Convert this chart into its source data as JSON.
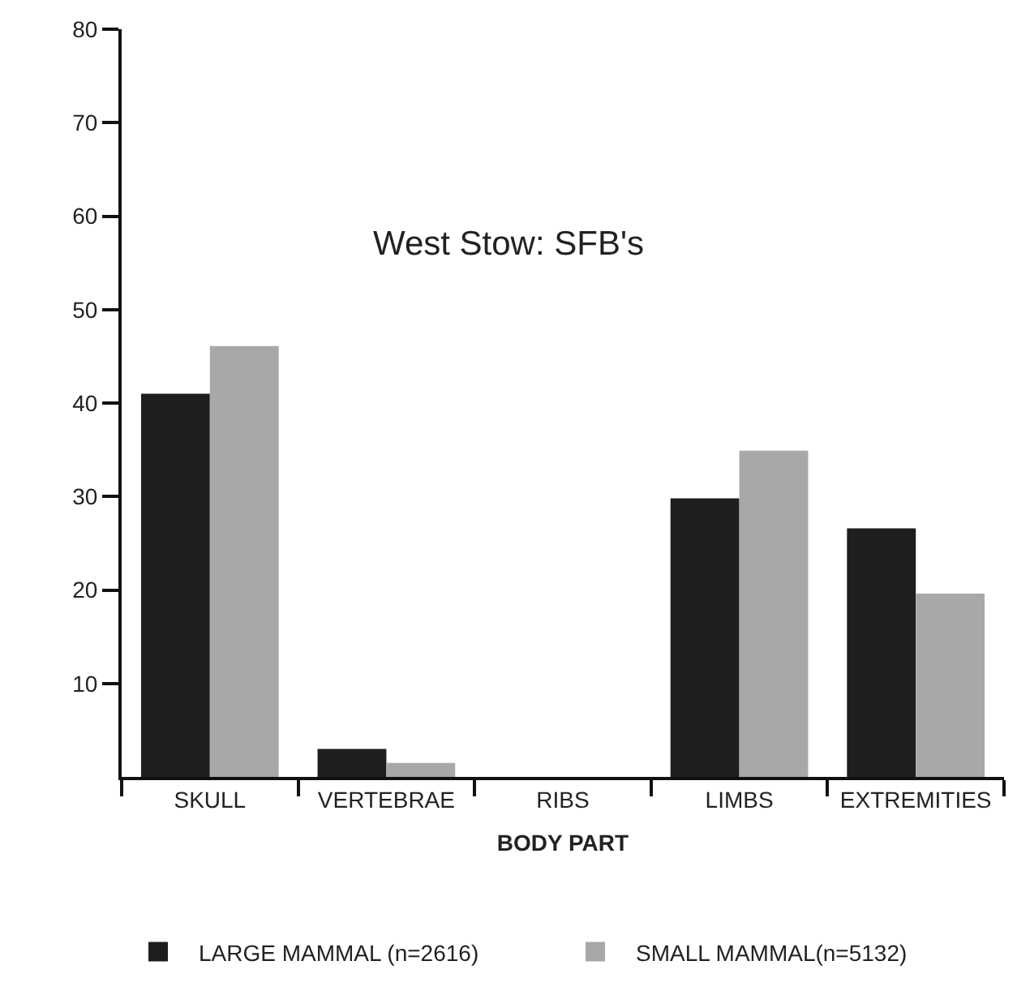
{
  "chart_data": {
    "type": "bar",
    "title": "West Stow: SFB's",
    "xlabel": "BODY PART",
    "categories": [
      "SKULL",
      "VERTEBRAE",
      "RIBS",
      "LIMBS",
      "EXTREMITIES"
    ],
    "series": [
      {
        "name": "LARGE MAMMAL (n=2616)",
        "color": "#1e1e1e",
        "values": [
          41.0,
          3.0,
          0,
          29.8,
          26.6
        ]
      },
      {
        "name": "SMALL MAMMAL(n=5132)",
        "color": "#a8a8a8",
        "values": [
          46.1,
          1.5,
          0,
          34.9,
          19.6
        ]
      }
    ],
    "ylim": [
      0,
      80
    ],
    "yticks": [
      10,
      20,
      30,
      40,
      50,
      60,
      70,
      80
    ],
    "legend": "bottom"
  }
}
